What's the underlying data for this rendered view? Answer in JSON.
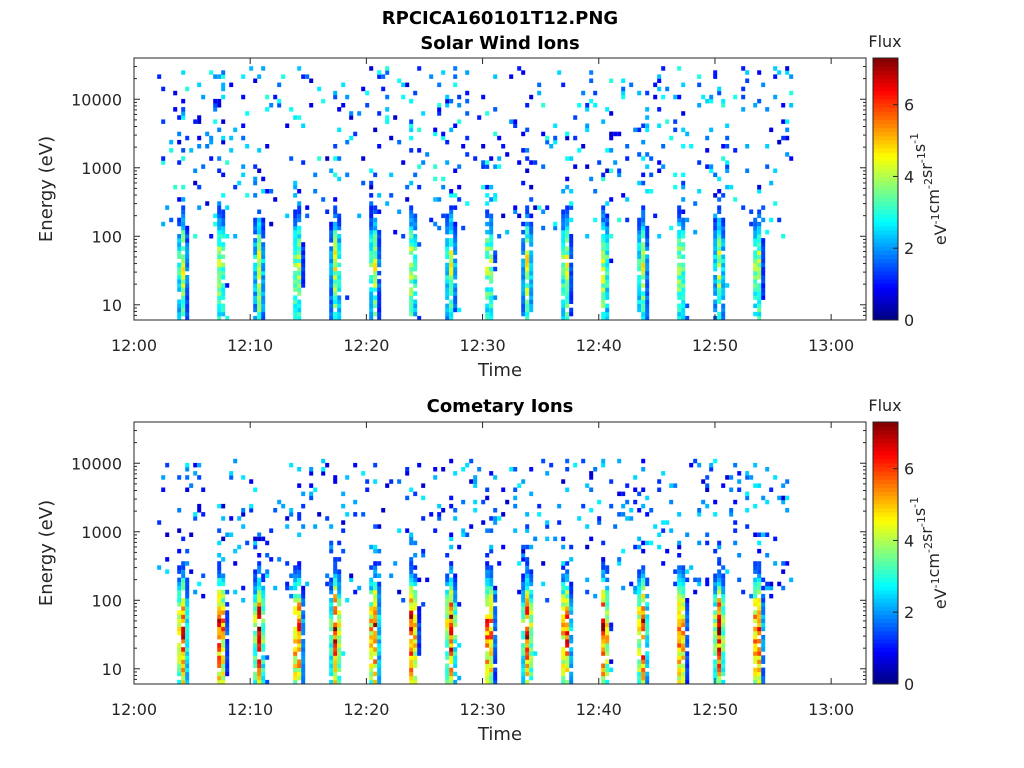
{
  "figure_title": "RPCICA160101T12.PNG",
  "colorbar": {
    "title": "Flux",
    "label_parts": [
      "eV",
      "-1",
      "cm",
      "-2",
      "sr",
      "-1",
      "s",
      "-1"
    ],
    "ticks": [
      0,
      2,
      4,
      6
    ],
    "range": [
      0,
      7.3
    ],
    "colormap": "jet"
  },
  "chart_data": [
    {
      "type": "heatmap",
      "title": "Solar Wind Ions",
      "xlabel": "Time",
      "ylabel": "Energy (eV)",
      "x_tick_labels": [
        "12:00",
        "12:10",
        "12:20",
        "12:30",
        "12:40",
        "12:50",
        "13:00"
      ],
      "xlim_minutes": [
        0,
        63
      ],
      "y_scale": "log",
      "y_tick_labels": [
        "10",
        "100",
        "1000",
        "10000"
      ],
      "ylim": [
        6,
        40000
      ],
      "data_extent_minutes": [
        2,
        56.5
      ],
      "sweep_period_minutes": 3.3,
      "sweep_start_minutes": [
        3.6,
        6.9,
        10.2,
        13.5,
        16.8,
        20.1,
        23.4,
        26.7,
        30.0,
        33.3,
        36.6,
        39.9,
        43.2,
        46.5,
        49.8,
        53.1
      ],
      "peak_energy_eV": 40,
      "peak_flux": 4.5,
      "max_energy_eV": 30000,
      "grid": false
    },
    {
      "type": "heatmap",
      "title": "Cometary Ions",
      "xlabel": "Time",
      "ylabel": "Energy (eV)",
      "x_tick_labels": [
        "12:00",
        "12:10",
        "12:20",
        "12:30",
        "12:40",
        "12:50",
        "13:00"
      ],
      "xlim_minutes": [
        0,
        63
      ],
      "y_scale": "log",
      "y_tick_labels": [
        "10",
        "100",
        "1000",
        "10000"
      ],
      "ylim": [
        6,
        40000
      ],
      "data_extent_minutes": [
        2,
        56.5
      ],
      "sweep_period_minutes": 3.3,
      "sweep_start_minutes": [
        3.6,
        6.9,
        10.2,
        13.5,
        16.8,
        20.1,
        23.4,
        26.7,
        30.0,
        33.3,
        36.6,
        39.9,
        43.2,
        46.5,
        49.8,
        53.1
      ],
      "peak_energy_eV": 40,
      "peak_flux": 6.8,
      "max_energy_eV": 12000,
      "grid": false
    }
  ]
}
